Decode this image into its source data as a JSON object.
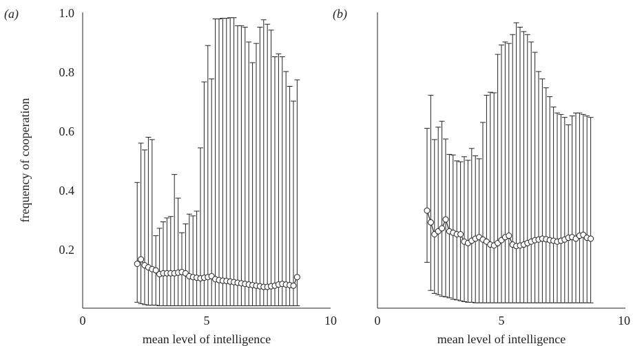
{
  "chart_data": [
    {
      "panel_label": "(a)",
      "type": "line",
      "series_style": "line with open circle markers and vertical error bars (error bars show a min-max range)",
      "xlabel": "mean level of intelligence",
      "ylabel": "frequency of cooperation",
      "xlim": [
        0,
        10
      ],
      "ylim": [
        0,
        1.0
      ],
      "x_ticks": [
        "0",
        "5",
        "10"
      ],
      "y_ticks": [
        "0.2",
        "0.4",
        "0.6",
        "0.8",
        "1.0"
      ],
      "grid": false,
      "x": [
        2.2,
        2.35,
        2.5,
        2.65,
        2.8,
        2.95,
        3.1,
        3.25,
        3.4,
        3.55,
        3.7,
        3.85,
        4.0,
        4.15,
        4.3,
        4.45,
        4.6,
        4.75,
        4.9,
        5.05,
        5.2,
        5.35,
        5.5,
        5.65,
        5.8,
        5.95,
        6.1,
        6.25,
        6.4,
        6.55,
        6.7,
        6.85,
        7.0,
        7.15,
        7.3,
        7.45,
        7.6,
        7.75,
        7.9,
        8.05,
        8.2,
        8.35,
        8.5,
        8.65
      ],
      "values": [
        0.15,
        0.165,
        0.145,
        0.138,
        0.132,
        0.128,
        0.115,
        0.118,
        0.118,
        0.118,
        0.118,
        0.12,
        0.122,
        0.118,
        0.108,
        0.105,
        0.103,
        0.101,
        0.103,
        0.105,
        0.108,
        0.098,
        0.095,
        0.093,
        0.092,
        0.09,
        0.088,
        0.086,
        0.084,
        0.082,
        0.08,
        0.078,
        0.076,
        0.074,
        0.072,
        0.072,
        0.074,
        0.076,
        0.08,
        0.082,
        0.08,
        0.078,
        0.076,
        0.105
      ],
      "upper": [
        0.425,
        0.558,
        0.535,
        0.578,
        0.57,
        0.245,
        0.27,
        0.292,
        0.305,
        0.31,
        0.452,
        0.372,
        0.255,
        0.285,
        0.318,
        0.312,
        0.328,
        0.542,
        0.765,
        0.888,
        0.775,
        0.978,
        0.978,
        0.98,
        0.98,
        0.982,
        0.982,
        0.955,
        0.955,
        0.95,
        0.9,
        0.83,
        0.895,
        0.95,
        0.975,
        0.96,
        0.94,
        0.85,
        0.86,
        0.85,
        0.8,
        0.75,
        0.7,
        0.772
      ],
      "lower": [
        0.02,
        0.015,
        0.012,
        0.01,
        0.01,
        0.01,
        0.008,
        0.008,
        0.008,
        0.008,
        0.008,
        0.008,
        0.008,
        0.008,
        0.008,
        0.008,
        0.008,
        0.008,
        0.008,
        0.008,
        0.008,
        0.008,
        0.008,
        0.008,
        0.008,
        0.008,
        0.008,
        0.008,
        0.008,
        0.008,
        0.008,
        0.008,
        0.008,
        0.008,
        0.008,
        0.008,
        0.008,
        0.008,
        0.008,
        0.008,
        0.008,
        0.008,
        0.008,
        0.008
      ]
    },
    {
      "panel_label": "(b)",
      "type": "line",
      "series_style": "line with open circle markers and vertical error bars (error bars show a min-max range)",
      "xlabel": "mean level of intelligence",
      "ylabel": "frequency of cooperation",
      "xlim": [
        0,
        10
      ],
      "ylim": [
        0,
        1.0
      ],
      "x_ticks": [
        "0",
        "5",
        "10"
      ],
      "y_ticks": [],
      "grid": false,
      "x": [
        2.0,
        2.15,
        2.3,
        2.45,
        2.6,
        2.75,
        2.9,
        3.05,
        3.2,
        3.35,
        3.5,
        3.65,
        3.8,
        3.95,
        4.1,
        4.25,
        4.4,
        4.55,
        4.7,
        4.85,
        5.0,
        5.15,
        5.3,
        5.45,
        5.6,
        5.75,
        5.9,
        6.05,
        6.2,
        6.35,
        6.5,
        6.65,
        6.8,
        6.95,
        7.1,
        7.25,
        7.4,
        7.55,
        7.7,
        7.85,
        8.0,
        8.15,
        8.3,
        8.45,
        8.6
      ],
      "values": [
        0.33,
        0.29,
        0.25,
        0.26,
        0.27,
        0.3,
        0.26,
        0.255,
        0.25,
        0.25,
        0.225,
        0.22,
        0.228,
        0.235,
        0.24,
        0.232,
        0.225,
        0.215,
        0.212,
        0.22,
        0.23,
        0.24,
        0.245,
        0.215,
        0.21,
        0.212,
        0.215,
        0.22,
        0.225,
        0.23,
        0.232,
        0.235,
        0.233,
        0.23,
        0.228,
        0.225,
        0.228,
        0.232,
        0.238,
        0.24,
        0.235,
        0.245,
        0.248,
        0.238,
        0.235
      ],
      "upper": [
        0.608,
        0.72,
        0.57,
        0.612,
        0.632,
        0.572,
        0.52,
        0.518,
        0.498,
        0.495,
        0.512,
        0.5,
        0.54,
        0.515,
        0.505,
        0.628,
        0.72,
        0.73,
        0.728,
        0.858,
        0.89,
        0.9,
        0.895,
        0.925,
        0.965,
        0.95,
        0.935,
        0.925,
        0.9,
        0.865,
        0.8,
        0.775,
        0.745,
        0.715,
        0.68,
        0.66,
        0.655,
        0.645,
        0.62,
        0.65,
        0.66,
        0.66,
        0.655,
        0.65,
        0.645
      ],
      "lower": [
        0.155,
        0.06,
        0.05,
        0.045,
        0.04,
        0.038,
        0.035,
        0.03,
        0.028,
        0.025,
        0.022,
        0.02,
        0.02,
        0.018,
        0.018,
        0.018,
        0.018,
        0.018,
        0.018,
        0.018,
        0.018,
        0.018,
        0.018,
        0.018,
        0.018,
        0.018,
        0.018,
        0.018,
        0.018,
        0.018,
        0.018,
        0.018,
        0.018,
        0.018,
        0.018,
        0.018,
        0.018,
        0.018,
        0.018,
        0.018,
        0.018,
        0.018,
        0.018,
        0.018,
        0.018
      ]
    }
  ]
}
